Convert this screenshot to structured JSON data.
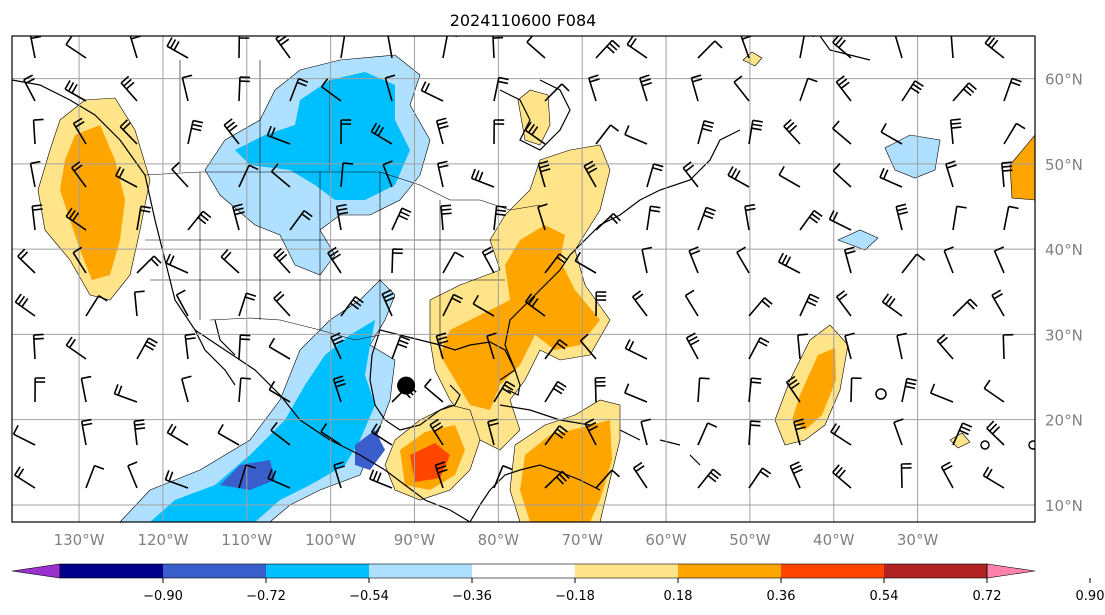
{
  "map": {
    "title": "2024110600 F084",
    "projection": "equirectangular",
    "lon_range": [
      -138,
      -16
    ],
    "lat_range": [
      8,
      65
    ],
    "lon_ticks": [
      {
        "value": -130,
        "label": "130°W"
      },
      {
        "value": -120,
        "label": "120°W"
      },
      {
        "value": -110,
        "label": "110°W"
      },
      {
        "value": -100,
        "label": "100°W"
      },
      {
        "value": -90,
        "label": "90°W"
      },
      {
        "value": -80,
        "label": "80°W"
      },
      {
        "value": -70,
        "label": "70°W"
      },
      {
        "value": -60,
        "label": "60°W"
      },
      {
        "value": -50,
        "label": "50°W"
      },
      {
        "value": -40,
        "label": "40°W"
      },
      {
        "value": -30,
        "label": "30°W"
      }
    ],
    "lat_ticks": [
      {
        "value": 60,
        "label": "60°N"
      },
      {
        "value": 50,
        "label": "50°N"
      },
      {
        "value": 40,
        "label": "40°N"
      },
      {
        "value": 30,
        "label": "30°N"
      },
      {
        "value": 20,
        "label": "20°N"
      },
      {
        "value": 10,
        "label": "10°N"
      }
    ],
    "grid": true,
    "marker": {
      "name": "storm-center",
      "lon": -91,
      "lat": 24
    }
  },
  "colorbar": {
    "extend": "both",
    "ticks": [
      "−0.90",
      "−0.72",
      "−0.54",
      "−0.36",
      "−0.18",
      "0.18",
      "0.36",
      "0.54",
      "0.72",
      "0.90"
    ],
    "colors": [
      "#9932cc",
      "#00008b",
      "#3a5fcd",
      "#00bfff",
      "#b0e0ff",
      "#ffffff",
      "#ffe48a",
      "#ffa500",
      "#ff4500",
      "#b22222",
      "#ff82ab"
    ]
  },
  "colors": {
    "neg_strong": "#3a5fcd",
    "neg_mid": "#00bfff",
    "neg_weak": "#b0e0ff",
    "pos_weak": "#ffe48a",
    "pos_mid": "#ffa500",
    "pos_strong": "#ff4500",
    "grid": "#a0a0a0",
    "coast": "#000000"
  }
}
